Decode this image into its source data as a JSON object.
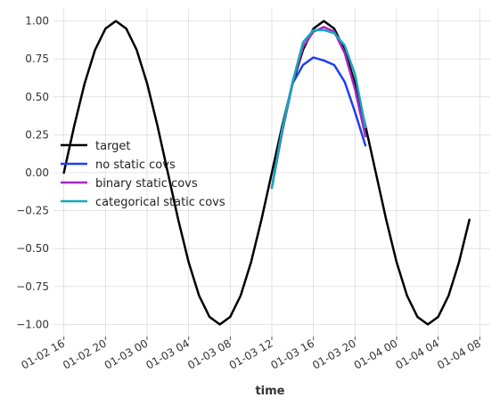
{
  "chart_data": {
    "type": "line",
    "xlabel": "time",
    "ylabel": "",
    "title": "",
    "grid": true,
    "legend_position": "center-left",
    "ylim": [
      -1.08,
      1.08
    ],
    "xlim": [
      "2022-01-02 15:00",
      "2022-01-04 09:00"
    ],
    "y_ticks": [
      -1.0,
      -0.75,
      -0.5,
      -0.25,
      0.0,
      0.25,
      0.5,
      0.75,
      1.0
    ],
    "y_tick_labels": [
      "−1.00",
      "−0.75",
      "−0.50",
      "−0.25",
      "0.00",
      "0.25",
      "0.50",
      "0.75",
      "1.00"
    ],
    "x_ticks": [
      "2022-01-02 16:00",
      "2022-01-02 20:00",
      "2022-01-03 00:00",
      "2022-01-03 04:00",
      "2022-01-03 08:00",
      "2022-01-03 12:00",
      "2022-01-03 16:00",
      "2022-01-03 20:00",
      "2022-01-04 00:00",
      "2022-01-04 04:00",
      "2022-01-04 08:00"
    ],
    "x_tick_labels": [
      "01-02 16",
      "01-02 20",
      "01-03 00",
      "01-03 04",
      "01-03 08",
      "01-03 12",
      "01-03 16",
      "01-03 20",
      "01-04 00",
      "01-04 04",
      "01-04 08"
    ],
    "series": [
      {
        "name": "target",
        "color": "#000000",
        "x": [
          "2022-01-02 16:00",
          "2022-01-02 17:00",
          "2022-01-02 18:00",
          "2022-01-02 19:00",
          "2022-01-02 20:00",
          "2022-01-02 21:00",
          "2022-01-02 22:00",
          "2022-01-02 23:00",
          "2022-01-03 00:00",
          "2022-01-03 01:00",
          "2022-01-03 02:00",
          "2022-01-03 03:00",
          "2022-01-03 04:00",
          "2022-01-03 05:00",
          "2022-01-03 06:00",
          "2022-01-03 07:00",
          "2022-01-03 08:00",
          "2022-01-03 09:00",
          "2022-01-03 10:00",
          "2022-01-03 11:00",
          "2022-01-03 12:00",
          "2022-01-03 13:00",
          "2022-01-03 14:00",
          "2022-01-03 15:00",
          "2022-01-03 16:00",
          "2022-01-03 17:00",
          "2022-01-03 18:00",
          "2022-01-03 19:00",
          "2022-01-03 20:00",
          "2022-01-03 21:00",
          "2022-01-03 22:00",
          "2022-01-03 23:00",
          "2022-01-04 00:00",
          "2022-01-04 01:00",
          "2022-01-04 02:00",
          "2022-01-04 03:00",
          "2022-01-04 04:00",
          "2022-01-04 05:00",
          "2022-01-04 06:00",
          "2022-01-04 07:00"
        ],
        "values": [
          0.0,
          0.31,
          0.59,
          0.81,
          0.95,
          1.0,
          0.95,
          0.81,
          0.59,
          0.31,
          0.0,
          -0.31,
          -0.59,
          -0.81,
          -0.95,
          -1.0,
          -0.95,
          -0.81,
          -0.59,
          -0.31,
          0.0,
          0.31,
          0.59,
          0.81,
          0.95,
          1.0,
          0.95,
          0.81,
          0.59,
          0.31,
          0.0,
          -0.31,
          -0.59,
          -0.81,
          -0.95,
          -1.0,
          -0.95,
          -0.81,
          -0.59,
          -0.31
        ]
      },
      {
        "name": "no static covs",
        "color": "#1f3ff0",
        "x": [
          "2022-01-03 12:00",
          "2022-01-03 13:00",
          "2022-01-03 14:00",
          "2022-01-03 15:00",
          "2022-01-03 16:00",
          "2022-01-03 17:00",
          "2022-01-03 18:00",
          "2022-01-03 19:00",
          "2022-01-03 20:00",
          "2022-01-03 21:00"
        ],
        "values": [
          -0.1,
          0.27,
          0.59,
          0.71,
          0.76,
          0.74,
          0.71,
          0.6,
          0.4,
          0.18
        ]
      },
      {
        "name": "binary static covs",
        "color": "#a626c7",
        "x": [
          "2022-01-03 12:00",
          "2022-01-03 13:00",
          "2022-01-03 14:00",
          "2022-01-03 15:00",
          "2022-01-03 16:00",
          "2022-01-03 17:00",
          "2022-01-03 18:00",
          "2022-01-03 19:00",
          "2022-01-03 20:00",
          "2022-01-03 21:00"
        ],
        "values": [
          -0.1,
          0.28,
          0.6,
          0.83,
          0.93,
          0.96,
          0.93,
          0.79,
          0.55,
          0.24
        ]
      },
      {
        "name": "categorical static covs",
        "color": "#17a8b8",
        "x": [
          "2022-01-03 12:00",
          "2022-01-03 13:00",
          "2022-01-03 14:00",
          "2022-01-03 15:00",
          "2022-01-03 16:00",
          "2022-01-03 17:00",
          "2022-01-03 18:00",
          "2022-01-03 19:00",
          "2022-01-03 20:00",
          "2022-01-03 21:00"
        ],
        "values": [
          -0.1,
          0.29,
          0.6,
          0.86,
          0.94,
          0.94,
          0.92,
          0.84,
          0.65,
          0.3
        ]
      }
    ]
  }
}
